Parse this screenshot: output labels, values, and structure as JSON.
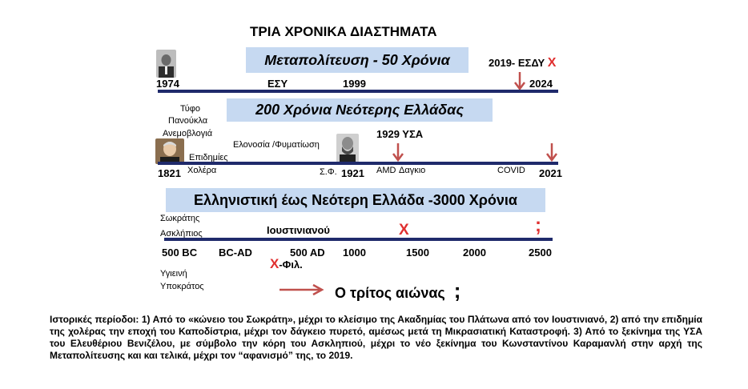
{
  "title": "ΤΡΙΑ ΧΡΟΝΙΚΑ ΔΙΑΣΤΗΜΑΤΑ",
  "period1": {
    "banner": "Μεταπολίτευση - 50 Χρόνια",
    "labels": {
      "y1974": "1974",
      "esy": "ΕΣΥ",
      "y1999": "1999",
      "y2024": "2024"
    },
    "esdy_text": "2019- ΕΣΔΥ",
    "esdy_mark": "Χ"
  },
  "period2": {
    "banner": "200 Χρόνια Νεότερης Ελλάδας",
    "left_stack": [
      "Τύφο",
      "Πανούκλα",
      "Ανεμοβλογιά",
      "Επιδημίες"
    ],
    "cholera": "Χολέρα",
    "y1821": "1821",
    "elonosia": "Ελονοσία /Φυματίωση",
    "sf": "Σ.Φ.",
    "y1921": "1921",
    "y1929": "1929 ΥΣΑ",
    "amd": "AMD",
    "dengue": "Δαγκιο",
    "covid": "COVID",
    "y2021": "2021"
  },
  "period3": {
    "banner": "Ελληνιστική  έως Νεότερη Ελλάδα -3000 Χρόνια",
    "sokratis": "Σωκράτης",
    "asklipios": "Ασκλήπιος",
    "ioustinianou": "Ιουστινιανού",
    "x_mark": "Χ",
    "semicolon": ";",
    "ticks": [
      "500 BC",
      "BC-AD",
      "500 AD",
      "1000",
      "1500",
      "2000",
      "2500"
    ],
    "x_fil_mark": "Χ",
    "x_fil_text": "-Φιλ.",
    "ygieini": "Υγιεινή",
    "ypokratos": "Υποκράτος",
    "third_century": "Ο τρίτος αιώνας",
    "third_semicolon": ";"
  },
  "caption": "Ιστορικές περίοδοι: 1) Από το «κώνειο του Σωκράτη», μέχρι το κλείσιμο της Ακαδημίας του Πλάτωνα από τον Ιουστινιανό, 2) από την επιδημία της χολέρας την εποχή του Καποδίστρια, μέχρι τον δάγκειο πυρετό, αμέσως μετά τη Μικρασιατική Καταστροφή. 3) Από το ξεκίνημα της ΥΣΑ του Ελευθέριου Βενιζέλου, με σύμβολο την κόρη του Ασκληπιού, μέχρι το νέο ξεκίνημα του Κωνσταντίνου Καραμανλή στην αρχή της Μεταπολίτευσης και και τελικά, μέχρι τον “αφανισμό” της, το 2019.",
  "colors": {
    "bar": "#1f2a6b",
    "banner": "#c6d9f1",
    "red": "#e03030",
    "arrow": "#c0504d"
  },
  "icons": [
    "portrait-karamanlis-photo",
    "portrait-kapodistrias-photo",
    "portrait-venizelos-photo",
    "down-arrow-icon",
    "right-arrow-icon"
  ]
}
